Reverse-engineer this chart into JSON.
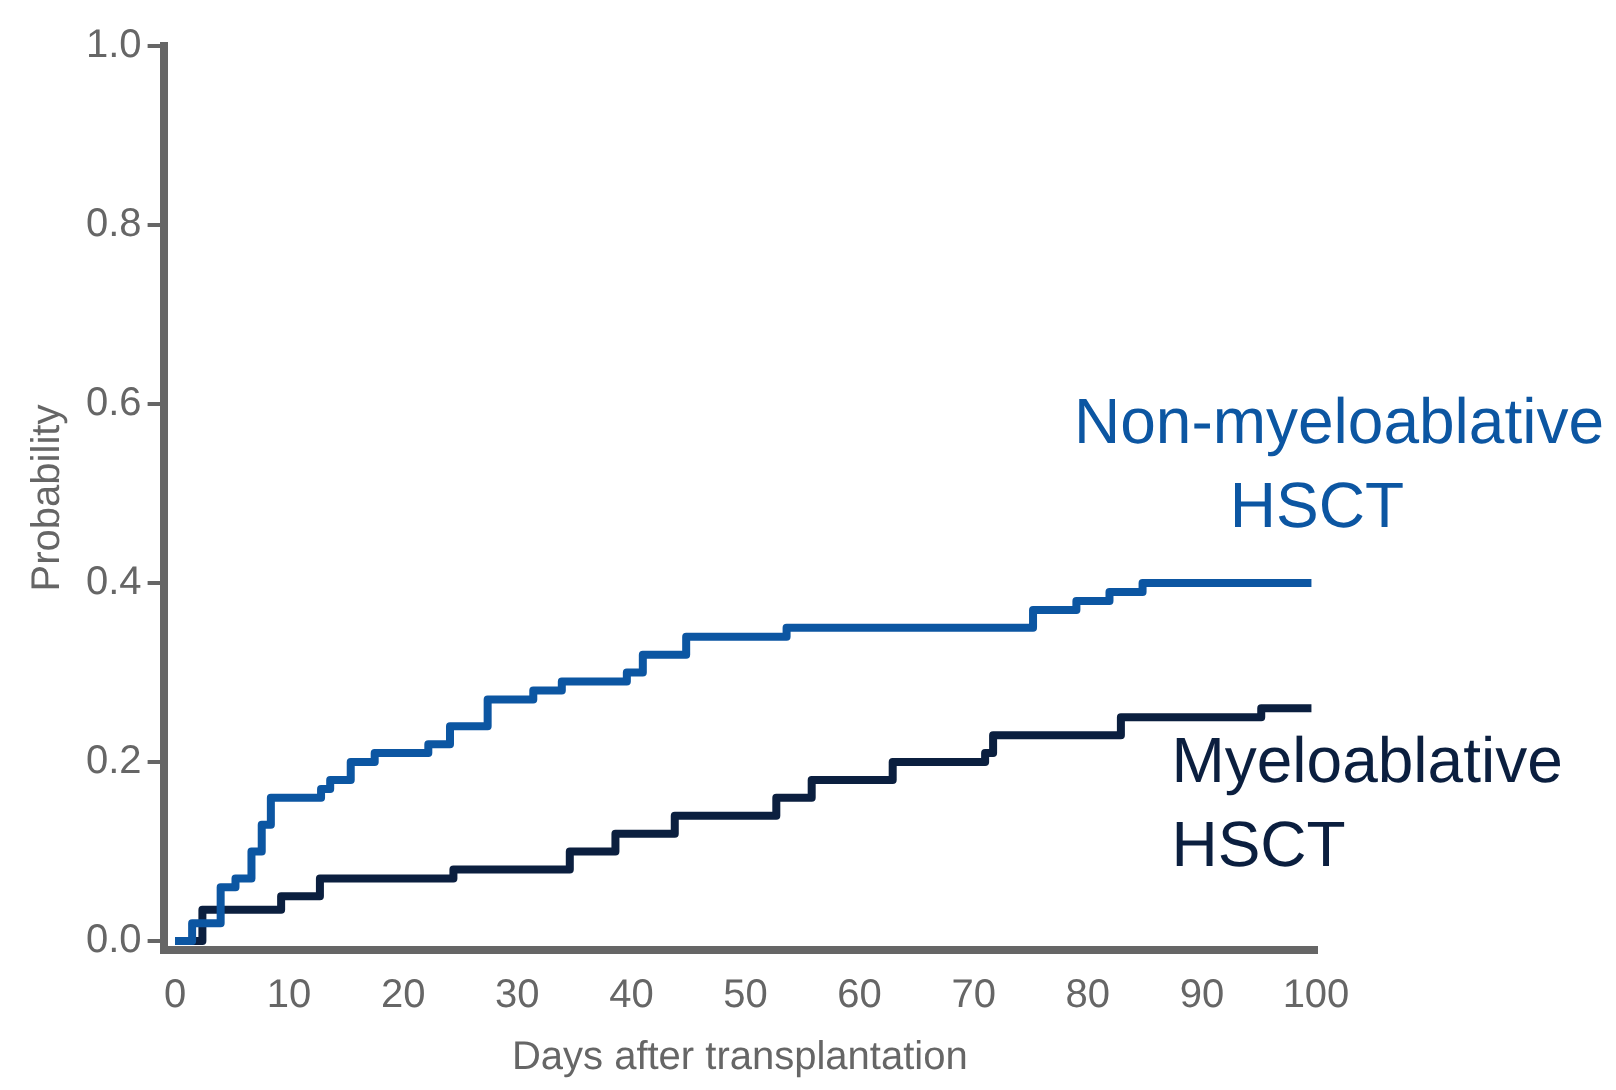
{
  "chart_data": {
    "type": "step",
    "xlabel": "Days after transplantation",
    "ylabel": "Probability",
    "xlim": [
      -1,
      100
    ],
    "ylim": [
      -0.01,
      1.0
    ],
    "xticks": [
      0,
      10,
      20,
      30,
      40,
      50,
      60,
      70,
      80,
      90,
      100
    ],
    "yticks": [
      {
        "value": 0,
        "label": "0.0"
      },
      {
        "value": 0.2,
        "label": "0.2"
      },
      {
        "value": 0.4,
        "label": "0.4"
      },
      {
        "value": 0.6,
        "label": "0.6"
      },
      {
        "value": 0.8,
        "label": "0.8"
      },
      {
        "value": 1,
        "label": "1.0"
      }
    ],
    "grid": false,
    "legend": false,
    "marker": "none",
    "line_style": "solid",
    "series": [
      {
        "name": "Non-myeloablative HSCT",
        "color": "#0c56a2",
        "x": [
          0,
          1.5,
          4,
          5.3,
          6.7,
          7.6,
          8.4,
          12.8,
          13.6,
          15.4,
          17.5,
          22.2,
          24.1,
          27.4,
          31.4,
          33.9,
          39.6,
          41,
          44.8,
          53.6,
          56.2,
          75.2,
          79,
          81.9,
          84.8,
          96.5,
          99.6
        ],
        "values": [
          0,
          0.02,
          0.06,
          0.07,
          0.1,
          0.13,
          0.16,
          0.17,
          0.18,
          0.2,
          0.21,
          0.22,
          0.24,
          0.27,
          0.28,
          0.29,
          0.3,
          0.32,
          0.34,
          0.35,
          0.35,
          0.37,
          0.38,
          0.39,
          0.4,
          0.4,
          0.4
        ]
      },
      {
        "name": "Myeloablative HSCT",
        "color": "#0b1f3f",
        "x": [
          0,
          2.4,
          9.3,
          12.7,
          24.4,
          34.6,
          38.6,
          43.8,
          52.7,
          55.8,
          62.9,
          71,
          71.7,
          82.9,
          95.2,
          99.6
        ],
        "values": [
          0,
          0.035,
          0.05,
          0.07,
          0.08,
          0.1,
          0.12,
          0.14,
          0.16,
          0.18,
          0.2,
          0.21,
          0.23,
          0.25,
          0.26,
          0.26
        ]
      }
    ]
  }
}
